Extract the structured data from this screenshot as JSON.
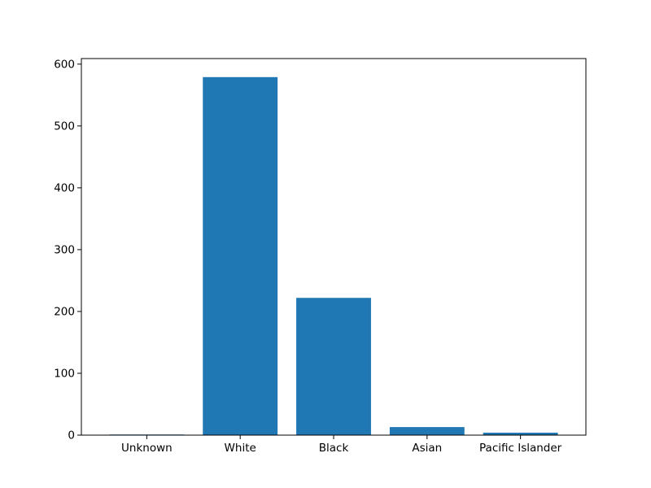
{
  "chart_data": {
    "type": "bar",
    "title": "",
    "xlabel": "",
    "ylabel": "",
    "categories": [
      "Unknown",
      "White",
      "Black",
      "Asian",
      "Pacific Islander"
    ],
    "values": [
      1,
      579,
      222,
      13,
      4
    ],
    "ylim": [
      0,
      609
    ],
    "yticks": [
      0,
      100,
      200,
      300,
      400,
      500,
      600
    ],
    "grid": false,
    "bar_color": "#1f77b4"
  }
}
